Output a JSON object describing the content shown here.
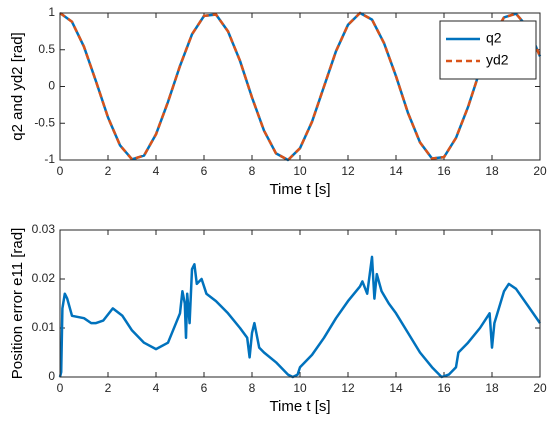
{
  "chart_data": [
    {
      "type": "line",
      "ylabel": "q2 and yd2 [rad]",
      "xlabel": "Time t [s]",
      "x": [
        0,
        0.5,
        1,
        1.5,
        2,
        2.5,
        3,
        3.5,
        4,
        4.5,
        5,
        5.5,
        6,
        6.5,
        7,
        7.5,
        8,
        8.5,
        9,
        9.5,
        10,
        10.5,
        11,
        11.5,
        12,
        12.5,
        13,
        13.5,
        14,
        14.5,
        15,
        15.5,
        16,
        16.5,
        17,
        17.5,
        18,
        18.5,
        19,
        19.5,
        20
      ],
      "series": [
        {
          "name": "q2",
          "color": "#0072bd",
          "linestyle": "-",
          "values": [
            1,
            0.88,
            0.54,
            0.07,
            -0.42,
            -0.8,
            -0.99,
            -0.94,
            -0.65,
            -0.21,
            0.28,
            0.71,
            0.96,
            0.98,
            0.75,
            0.35,
            -0.15,
            -0.6,
            -0.91,
            -1,
            -0.84,
            -0.48,
            0,
            0.48,
            0.84,
            1,
            0.91,
            0.59,
            0.14,
            -0.36,
            -0.76,
            -0.98,
            -0.96,
            -0.7,
            -0.28,
            0.22,
            0.66,
            0.94,
            0.99,
            0.8,
            0.41
          ]
        },
        {
          "name": "yd2",
          "color": "#d95319",
          "linestyle": "--",
          "values": [
            1,
            0.88,
            0.54,
            0.07,
            -0.42,
            -0.8,
            -0.99,
            -0.94,
            -0.65,
            -0.21,
            0.28,
            0.71,
            0.96,
            0.98,
            0.75,
            0.35,
            -0.15,
            -0.6,
            -0.91,
            -1,
            -0.84,
            -0.48,
            0,
            0.48,
            0.84,
            1,
            0.91,
            0.59,
            0.14,
            -0.36,
            -0.76,
            -0.98,
            -0.96,
            -0.7,
            -0.28,
            0.22,
            0.66,
            0.94,
            0.99,
            0.8,
            0.41
          ]
        }
      ],
      "xlim": [
        0,
        20
      ],
      "xticks": [
        0,
        2,
        4,
        6,
        8,
        10,
        12,
        14,
        16,
        18,
        20
      ],
      "ylim": [
        -1,
        1
      ],
      "yticks": [
        -1,
        -0.5,
        0,
        0.5,
        1
      ],
      "legend": "northeast"
    },
    {
      "type": "line",
      "ylabel": "Position error e11 [rad]",
      "xlabel": "Time t [s]",
      "x": [
        0,
        0.05,
        0.1,
        0.2,
        0.3,
        0.5,
        1,
        1.3,
        1.5,
        1.8,
        2.2,
        2.6,
        3,
        3.5,
        4,
        4.5,
        5,
        5.1,
        5.2,
        5.25,
        5.3,
        5.4,
        5.5,
        5.6,
        5.7,
        5.9,
        6.1,
        6.5,
        7,
        7.5,
        7.8,
        7.9,
        8,
        8.1,
        8.3,
        8.5,
        9,
        9.5,
        9.7,
        9.9,
        10,
        10.5,
        11,
        11.5,
        12,
        12.5,
        12.6,
        12.8,
        13,
        13.1,
        13.2,
        13.4,
        13.7,
        14,
        14.5,
        15,
        15.5,
        15.9,
        16.2,
        16.5,
        16.6,
        17,
        17.5,
        17.9,
        18,
        18.1,
        18.5,
        18.7,
        19,
        19.5,
        20
      ],
      "series": [
        {
          "name": "e11",
          "color": "#0072bd",
          "linestyle": "-",
          "values": [
            0,
            0.001,
            0.014,
            0.017,
            0.016,
            0.0125,
            0.012,
            0.011,
            0.011,
            0.0115,
            0.014,
            0.0125,
            0.0095,
            0.007,
            0.0057,
            0.007,
            0.013,
            0.0175,
            0.015,
            0.008,
            0.017,
            0.011,
            0.022,
            0.023,
            0.019,
            0.02,
            0.017,
            0.0155,
            0.013,
            0.01,
            0.008,
            0.004,
            0.009,
            0.011,
            0.006,
            0.005,
            0.003,
            0.0005,
            0,
            0.0005,
            0.002,
            0.0045,
            0.008,
            0.012,
            0.0155,
            0.0185,
            0.0195,
            0.017,
            0.0245,
            0.016,
            0.021,
            0.0175,
            0.015,
            0.013,
            0.009,
            0.005,
            0.002,
            0,
            0.0005,
            0.002,
            0.005,
            0.007,
            0.01,
            0.013,
            0.006,
            0.011,
            0.0175,
            0.019,
            0.018,
            0.0145,
            0.011
          ]
        }
      ],
      "xlim": [
        0,
        20
      ],
      "xticks": [
        0,
        2,
        4,
        6,
        8,
        10,
        12,
        14,
        16,
        18,
        20
      ],
      "ylim": [
        0,
        0.03
      ],
      "yticks": [
        0,
        0.01,
        0.02,
        0.03
      ]
    }
  ]
}
